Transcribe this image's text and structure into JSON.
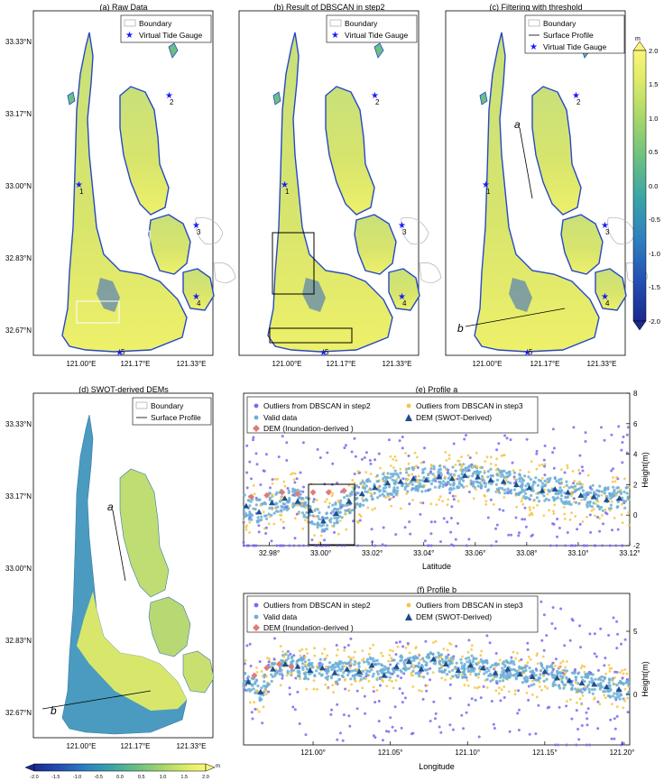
{
  "panels": {
    "a": {
      "title": "(a) Raw Data",
      "legend": [
        "Boundary",
        "Virtual Tide Gauge"
      ],
      "gauges": [
        "1",
        "2",
        "3",
        "4",
        "5"
      ]
    },
    "b": {
      "title": "(b) Result of DBSCAN in step2",
      "legend": [
        "Boundary",
        "Virtual Tide Gauge"
      ],
      "gauges": [
        "1",
        "2",
        "3",
        "4",
        "5"
      ]
    },
    "c": {
      "title": "(c) Filtering with threshold",
      "legend": [
        "Boundary",
        "Surface Profile",
        "Virtual Tide Gauge"
      ],
      "gauges": [
        "1",
        "2",
        "3",
        "4",
        "5"
      ],
      "profile_labels": [
        "a",
        "b"
      ]
    },
    "d": {
      "title": "(d) SWOT-derived DEMs",
      "legend": [
        "Boundary",
        "Surface Profile"
      ],
      "profile_labels": [
        "a",
        "b"
      ]
    }
  },
  "map_axes": {
    "lat_ticks": [
      "33.33°N",
      "33.17°N",
      "33.00°N",
      "32.83°N",
      "32.67°N"
    ],
    "lon_ticks": [
      "121.00°E",
      "121.17°E",
      "121.33°E"
    ]
  },
  "colorbar_right": {
    "unit": "m",
    "ticks": [
      "2.0",
      "1.5",
      "1.0",
      "0.5",
      "0.0",
      "-0.5",
      "-1.0",
      "-1.5",
      "-2.0"
    ]
  },
  "colorbar_bottom": {
    "unit": "m",
    "ticks": [
      "-2.0",
      "-1.5",
      "-1.0",
      "-0.5",
      "0.0",
      "0.5",
      "1.0",
      "1.5",
      "2.0"
    ]
  },
  "colors": {
    "outlier_step2": "#7b68ee",
    "outlier_step3": "#f5c542",
    "valid": "#6baed6",
    "dem_inundation": "#e07b7b",
    "dem_swot": "#1f4e8c",
    "gauge": "#1a1aff"
  },
  "chart_data": [
    {
      "type": "scatter",
      "title": "(e) Profile a",
      "xlabel": "Latitude",
      "ylabel": "Height(m)",
      "xlim": [
        32.97,
        33.12
      ],
      "ylim": [
        -2,
        8
      ],
      "x_ticks": [
        "32.98°",
        "33.00°",
        "33.02°",
        "33.04°",
        "33.06°",
        "33.08°",
        "33.10°",
        "33.12°"
      ],
      "y_ticks": [
        "-2",
        "0",
        "2",
        "4",
        "6",
        "8"
      ],
      "legend": [
        "Outliers from DBSCAN in step2",
        "Outliers from DBSCAN in step3",
        "Valid data",
        "DEM (SWOT-Derived)",
        "DEM (Inundation-derived )"
      ],
      "series": [
        {
          "name": "DEM (SWOT-Derived)",
          "x": [
            32.971,
            32.976,
            32.981,
            32.986,
            32.991,
            32.996,
            33.001,
            33.006,
            33.011,
            33.016,
            33.021,
            33.026,
            33.031,
            33.036,
            33.041,
            33.046,
            33.051,
            33.056,
            33.061,
            33.066,
            33.071,
            33.076,
            33.081,
            33.086,
            33.091,
            33.096,
            33.101,
            33.106,
            33.111,
            33.116
          ],
          "y": [
            0.6,
            0.2,
            0.8,
            1.1,
            0.9,
            0.3,
            -0.4,
            0.1,
            0.9,
            1.4,
            1.8,
            2.1,
            2.2,
            2.4,
            2.3,
            2.5,
            2.4,
            2.6,
            2.5,
            2.3,
            2.2,
            2.0,
            1.8,
            1.6,
            1.7,
            1.5,
            1.3,
            1.2,
            1.0,
            1.1
          ]
        },
        {
          "name": "DEM (Inundation-derived )",
          "x": [
            32.973,
            32.979,
            32.985,
            32.991,
            32.997,
            33.003,
            33.009
          ],
          "y": [
            1.2,
            1.3,
            1.5,
            1.4,
            1.5,
            1.5,
            1.6
          ]
        }
      ]
    },
    {
      "type": "scatter",
      "title": "(f) Profile b",
      "xlabel": "Longitude",
      "ylabel": "Height(m)",
      "xlim": [
        120.955,
        121.205
      ],
      "ylim": [
        -4,
        8
      ],
      "x_ticks": [
        "121.00°",
        "121.05°",
        "121.10°",
        "121.15°",
        "121.20°"
      ],
      "y_ticks": [
        "0",
        "5"
      ],
      "legend": [
        "Outliers from DBSCAN in step2",
        "Outliers from DBSCAN in step3",
        "Valid data",
        "DEM (SWOT-Derived)",
        "DEM (Inundation-derived )"
      ],
      "series": [
        {
          "name": "DEM (SWOT-Derived)",
          "x": [
            120.958,
            120.966,
            120.974,
            120.982,
            120.99,
            120.998,
            121.006,
            121.014,
            121.022,
            121.03,
            121.038,
            121.046,
            121.054,
            121.062,
            121.07,
            121.078,
            121.086,
            121.094,
            121.102,
            121.11,
            121.118,
            121.126,
            121.134,
            121.142,
            121.15,
            121.158,
            121.166,
            121.174,
            121.182,
            121.19,
            121.198
          ],
          "y": [
            1.0,
            0.2,
            2.0,
            2.4,
            2.2,
            1.9,
            2.1,
            1.7,
            2.0,
            1.8,
            2.3,
            1.5,
            2.2,
            2.6,
            2.0,
            2.8,
            2.4,
            1.9,
            2.3,
            2.1,
            1.7,
            2.0,
            1.6,
            1.4,
            1.8,
            1.3,
            1.1,
            0.9,
            0.8,
            0.6,
            0.4
          ]
        },
        {
          "name": "DEM (Inundation-derived )",
          "x": [
            120.962,
            120.97,
            120.978,
            120.986
          ],
          "y": [
            1.5,
            2.1,
            2.4,
            2.2
          ]
        }
      ]
    }
  ]
}
